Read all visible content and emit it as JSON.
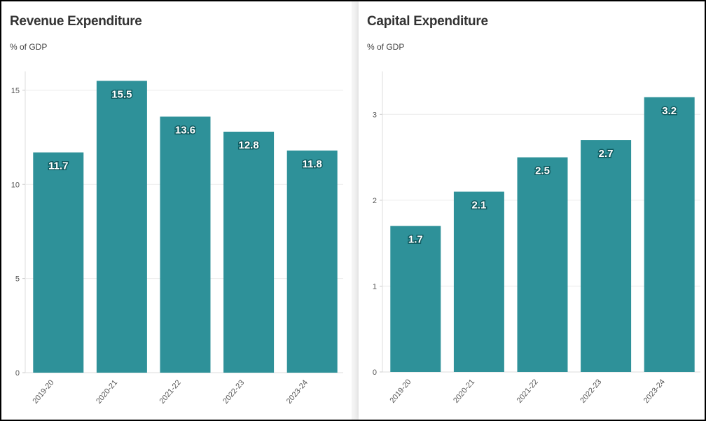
{
  "chart_data": [
    {
      "type": "bar",
      "title": "Revenue Expenditure",
      "subtitle": "% of GDP",
      "categories": [
        "2019-20",
        "2020-21",
        "2021-22",
        "2022-23",
        "2023-24"
      ],
      "values": [
        11.7,
        15.5,
        13.6,
        12.8,
        11.8
      ],
      "data_labels": [
        "11.7",
        "15.5",
        "13.6",
        "12.8",
        "11.8"
      ],
      "yticks": [
        0,
        5,
        10,
        15
      ],
      "ylim": [
        0,
        16
      ],
      "grid": true,
      "bar_color": "#2e9199"
    },
    {
      "type": "bar",
      "title": "Capital Expenditure",
      "subtitle": "% of GDP",
      "categories": [
        "2019-20",
        "2020-21",
        "2021-22",
        "2022-23",
        "2023-24"
      ],
      "values": [
        1.7,
        2.1,
        2.5,
        2.7,
        3.2
      ],
      "data_labels": [
        "1.7",
        "2.1",
        "2.5",
        "2.7",
        "3.2"
      ],
      "yticks": [
        0,
        1,
        2,
        3
      ],
      "ylim": [
        0,
        3.5
      ],
      "grid": true,
      "bar_color": "#2e9199"
    }
  ]
}
